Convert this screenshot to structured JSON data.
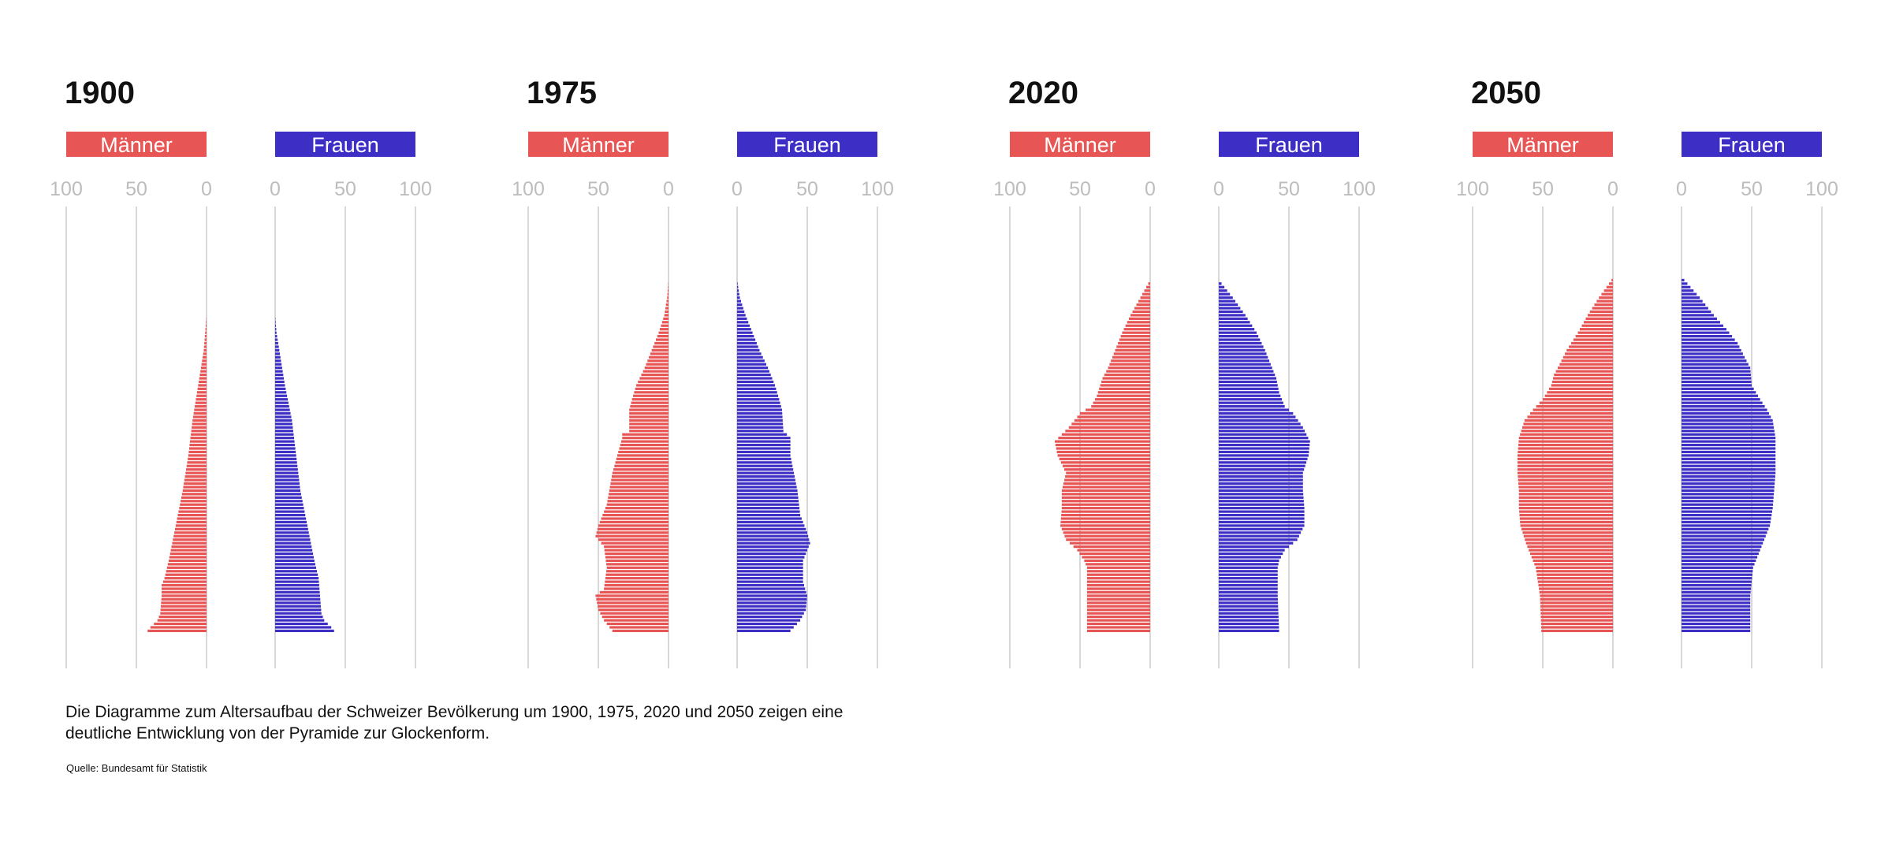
{
  "caption_lines": [
    "Die Diagramme zum Altersaufbau der Schweizer Bevölkerung um 1900, 1975, 2020 und 2050 zeigen eine",
    "deutliche Entwicklung von der Pyramide zur Glockenform."
  ],
  "source": "Quelle: Bundesamt für Statistik",
  "colors": {
    "maenner": "#e85555",
    "frauen": "#3d2ec5",
    "grid": "#cccccc",
    "tick_text": "#bdbdbd"
  },
  "chart_data": [
    {
      "type": "bar",
      "title": "1900",
      "legend": [
        "Männer",
        "Frauen"
      ],
      "ticks_maenner": [
        "100",
        "50",
        "0"
      ],
      "ticks_frauen": [
        "0",
        "50",
        "100"
      ],
      "xlim": [
        0,
        100
      ],
      "age_range": [
        0,
        95
      ],
      "series": [
        {
          "name": "Männer",
          "keypoints": [
            [
              0,
              42
            ],
            [
              1,
              40
            ],
            [
              3,
              35
            ],
            [
              5,
              33
            ],
            [
              10,
              32
            ],
            [
              13,
              32
            ],
            [
              15,
              30
            ],
            [
              20,
              27
            ],
            [
              30,
              22
            ],
            [
              40,
              17
            ],
            [
              50,
              13
            ],
            [
              60,
              10
            ],
            [
              70,
              6
            ],
            [
              75,
              4
            ],
            [
              80,
              2
            ],
            [
              85,
              1
            ],
            [
              90,
              0
            ]
          ]
        },
        {
          "name": "Frauen",
          "keypoints": [
            [
              0,
              42
            ],
            [
              1,
              40
            ],
            [
              3,
              35
            ],
            [
              5,
              33
            ],
            [
              10,
              32
            ],
            [
              15,
              31
            ],
            [
              20,
              28
            ],
            [
              30,
              23
            ],
            [
              40,
              18
            ],
            [
              50,
              15
            ],
            [
              60,
              12
            ],
            [
              70,
              7
            ],
            [
              75,
              5
            ],
            [
              80,
              3
            ],
            [
              85,
              1
            ],
            [
              90,
              0
            ]
          ]
        }
      ]
    },
    {
      "type": "bar",
      "title": "1975",
      "legend": [
        "Männer",
        "Frauen"
      ],
      "ticks_maenner": [
        "100",
        "50",
        "0"
      ],
      "ticks_frauen": [
        "0",
        "50",
        "100"
      ],
      "xlim": [
        0,
        100
      ],
      "age_range": [
        0,
        100
      ],
      "series": [
        {
          "name": "Männer",
          "keypoints": [
            [
              0,
              40
            ],
            [
              3,
              46
            ],
            [
              6,
              50
            ],
            [
              10,
              52
            ],
            [
              12,
              46
            ],
            [
              18,
              44
            ],
            [
              24,
              46
            ],
            [
              27,
              52
            ],
            [
              30,
              50
            ],
            [
              36,
              44
            ],
            [
              45,
              40
            ],
            [
              55,
              33
            ],
            [
              56,
              33
            ],
            [
              57,
              28
            ],
            [
              63,
              28
            ],
            [
              66,
              26
            ],
            [
              70,
              23
            ],
            [
              75,
              17
            ],
            [
              80,
              12
            ],
            [
              85,
              7
            ],
            [
              90,
              3
            ],
            [
              95,
              1
            ],
            [
              100,
              0
            ]
          ]
        },
        {
          "name": "Frauen",
          "keypoints": [
            [
              0,
              38
            ],
            [
              3,
              45
            ],
            [
              6,
              49
            ],
            [
              10,
              50
            ],
            [
              14,
              47
            ],
            [
              20,
              47
            ],
            [
              25,
              52
            ],
            [
              28,
              50
            ],
            [
              33,
              45
            ],
            [
              40,
              43
            ],
            [
              50,
              38
            ],
            [
              55,
              38
            ],
            [
              57,
              33
            ],
            [
              63,
              32
            ],
            [
              66,
              30
            ],
            [
              70,
              27
            ],
            [
              75,
              22
            ],
            [
              80,
              16
            ],
            [
              85,
              11
            ],
            [
              90,
              6
            ],
            [
              95,
              2
            ],
            [
              100,
              0
            ]
          ]
        }
      ]
    },
    {
      "type": "bar",
      "title": "2020",
      "legend": [
        "Männer",
        "Frauen"
      ],
      "ticks_maenner": [
        "100",
        "50",
        "0"
      ],
      "ticks_frauen": [
        "0",
        "50",
        "100"
      ],
      "xlim": [
        0,
        100
      ],
      "age_range": [
        0,
        100
      ],
      "series": [
        {
          "name": "Männer",
          "keypoints": [
            [
              0,
              45
            ],
            [
              10,
              45
            ],
            [
              18,
              45
            ],
            [
              20,
              47
            ],
            [
              23,
              52
            ],
            [
              26,
              60
            ],
            [
              30,
              64
            ],
            [
              35,
              63
            ],
            [
              40,
              63
            ],
            [
              45,
              60
            ],
            [
              50,
              66
            ],
            [
              54,
              68
            ],
            [
              58,
              58
            ],
            [
              62,
              50
            ],
            [
              64,
              42
            ],
            [
              67,
              38
            ],
            [
              72,
              34
            ],
            [
              75,
              30
            ],
            [
              80,
              25
            ],
            [
              85,
              20
            ],
            [
              90,
              14
            ],
            [
              95,
              7
            ],
            [
              100,
              0
            ]
          ]
        },
        {
          "name": "Frauen",
          "keypoints": [
            [
              0,
              43
            ],
            [
              10,
              42
            ],
            [
              18,
              42
            ],
            [
              20,
              43
            ],
            [
              23,
              47
            ],
            [
              26,
              56
            ],
            [
              30,
              61
            ],
            [
              35,
              61
            ],
            [
              40,
              60
            ],
            [
              45,
              60
            ],
            [
              50,
              64
            ],
            [
              54,
              65
            ],
            [
              58,
              60
            ],
            [
              62,
              53
            ],
            [
              64,
              47
            ],
            [
              68,
              43
            ],
            [
              72,
              41
            ],
            [
              75,
              38
            ],
            [
              80,
              33
            ],
            [
              85,
              27
            ],
            [
              90,
              19
            ],
            [
              95,
              10
            ],
            [
              100,
              0
            ]
          ]
        }
      ]
    },
    {
      "type": "bar",
      "title": "2050",
      "legend": [
        "Männer",
        "Frauen"
      ],
      "ticks_maenner": [
        "100",
        "50",
        "0"
      ],
      "ticks_frauen": [
        "0",
        "50",
        "100"
      ],
      "xlim": [
        0,
        100
      ],
      "age_range": [
        0,
        100
      ],
      "series": [
        {
          "name": "Männer",
          "keypoints": [
            [
              0,
              51
            ],
            [
              10,
              52
            ],
            [
              18,
              55
            ],
            [
              25,
              62
            ],
            [
              30,
              66
            ],
            [
              35,
              67
            ],
            [
              40,
              67
            ],
            [
              45,
              68
            ],
            [
              50,
              68
            ],
            [
              55,
              67
            ],
            [
              60,
              63
            ],
            [
              63,
              57
            ],
            [
              66,
              50
            ],
            [
              70,
              44
            ],
            [
              73,
              42
            ],
            [
              76,
              38
            ],
            [
              80,
              33
            ],
            [
              85,
              25
            ],
            [
              90,
              18
            ],
            [
              95,
              10
            ],
            [
              100,
              1
            ]
          ]
        },
        {
          "name": "Frauen",
          "keypoints": [
            [
              0,
              49
            ],
            [
              10,
              49
            ],
            [
              18,
              51
            ],
            [
              25,
              58
            ],
            [
              30,
              63
            ],
            [
              35,
              65
            ],
            [
              40,
              66
            ],
            [
              45,
              67
            ],
            [
              50,
              67
            ],
            [
              55,
              67
            ],
            [
              60,
              65
            ],
            [
              63,
              61
            ],
            [
              66,
              56
            ],
            [
              70,
              50
            ],
            [
              75,
              49
            ],
            [
              78,
              45
            ],
            [
              82,
              40
            ],
            [
              86,
              32
            ],
            [
              90,
              23
            ],
            [
              95,
              13
            ],
            [
              100,
              2
            ]
          ]
        }
      ]
    }
  ]
}
